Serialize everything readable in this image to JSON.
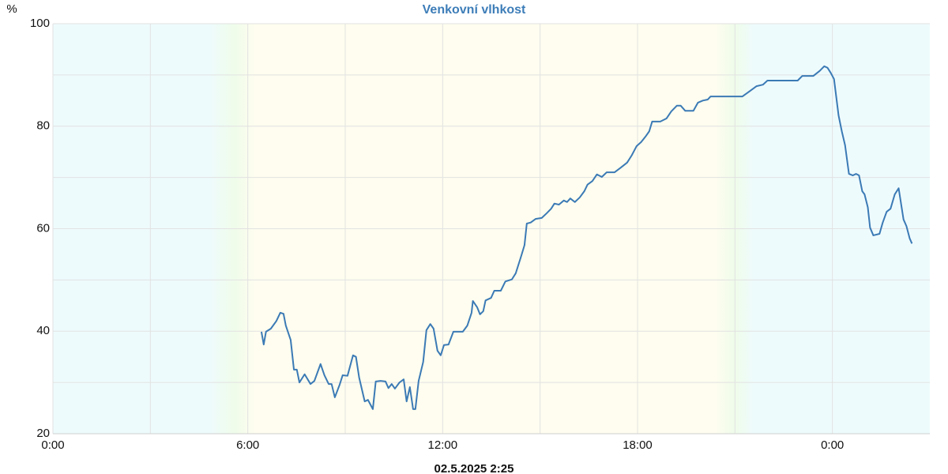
{
  "chart_data": {
    "type": "line",
    "title": "Venkovní vlhkost",
    "subtitle": "02.5.2025 2:25",
    "y_label": "%",
    "color": "#3b7ab5",
    "x": [
      6.42,
      6.49,
      6.56,
      6.71,
      6.88,
      7.0,
      7.1,
      7.17,
      7.32,
      7.42,
      7.51,
      7.59,
      7.75,
      7.93,
      8.05,
      8.24,
      8.36,
      8.49,
      8.58,
      8.68,
      8.83,
      8.92,
      9.07,
      9.24,
      9.33,
      9.43,
      9.6,
      9.7,
      9.85,
      9.94,
      10.09,
      10.24,
      10.33,
      10.43,
      10.53,
      10.67,
      10.8,
      10.89,
      10.99,
      11.09,
      11.16,
      11.26,
      11.4,
      11.5,
      11.62,
      11.72,
      11.84,
      11.94,
      12.04,
      12.18,
      12.33,
      12.47,
      12.62,
      12.76,
      12.89,
      12.93,
      13.06,
      13.15,
      13.25,
      13.32,
      13.49,
      13.59,
      13.79,
      13.93,
      14.13,
      14.25,
      14.42,
      14.52,
      14.59,
      14.71,
      14.86,
      15.05,
      15.2,
      15.34,
      15.44,
      15.58,
      15.73,
      15.83,
      15.93,
      16.07,
      16.22,
      16.36,
      16.46,
      16.61,
      16.75,
      16.9,
      17.05,
      17.29,
      17.48,
      17.68,
      17.82,
      17.97,
      18.11,
      18.26,
      18.36,
      18.45,
      18.7,
      18.89,
      19.04,
      19.21,
      19.33,
      19.47,
      19.72,
      19.86,
      20.01,
      20.16,
      20.25,
      21.23,
      21.47,
      21.66,
      21.86,
      22.0,
      22.93,
      23.07,
      23.41,
      23.61,
      23.75,
      23.85,
      23.95,
      24.05,
      24.19,
      24.29,
      24.39,
      24.51,
      24.63,
      24.73,
      24.82,
      24.92,
      24.99,
      25.09,
      25.16,
      25.26,
      25.45,
      25.55,
      25.67,
      25.79,
      25.92,
      26.04,
      26.19,
      26.28,
      26.38,
      26.45
    ],
    "values": [
      39.9,
      37.4,
      39.9,
      40.5,
      42,
      43.6,
      43.4,
      41.1,
      38.3,
      32.5,
      32.5,
      30,
      31.6,
      29.7,
      30.3,
      33.6,
      31.4,
      29.7,
      29.7,
      27.1,
      29.6,
      31.4,
      31.3,
      35.3,
      35,
      30.9,
      26.3,
      26.6,
      24.8,
      30.2,
      30.3,
      30.2,
      28.9,
      29.7,
      28.8,
      30,
      30.6,
      26.3,
      29.1,
      24.8,
      24.8,
      30.3,
      34,
      40.2,
      41.4,
      40.5,
      36.2,
      35.3,
      37.3,
      37.4,
      39.9,
      39.9,
      39.9,
      41.1,
      43.6,
      45.9,
      44.7,
      43.3,
      43.9,
      46,
      46.5,
      47.9,
      47.9,
      49.7,
      50.1,
      51.3,
      54.7,
      56.8,
      61,
      61.2,
      61.9,
      62.1,
      63,
      63.9,
      64.9,
      64.7,
      65.5,
      65.2,
      65.9,
      65.2,
      66.1,
      67.3,
      68.6,
      69.3,
      70.6,
      70.1,
      71,
      71,
      71.9,
      72.9,
      74.3,
      76.1,
      76.9,
      78.1,
      79,
      80.9,
      80.9,
      81.5,
      82.9,
      84,
      84,
      83,
      83,
      84.6,
      85,
      85.2,
      85.8,
      85.8,
      86.9,
      87.8,
      88.1,
      88.9,
      88.9,
      89.8,
      89.8,
      90.8,
      91.7,
      91.4,
      90.4,
      89.2,
      82.1,
      79,
      76.3,
      70.7,
      70.4,
      70.7,
      70.4,
      67.3,
      66.7,
      64.2,
      60.2,
      58.7,
      59,
      61.2,
      63.3,
      63.9,
      66.7,
      67.9,
      61.8,
      60.5,
      58.1,
      57.1
    ],
    "xlim": [
      0,
      27
    ],
    "xticks": [
      {
        "value": 0,
        "label": "0:00"
      },
      {
        "value": 6,
        "label": "6:00"
      },
      {
        "value": 12,
        "label": "12:00"
      },
      {
        "value": 18,
        "label": "18:00"
      },
      {
        "value": 24,
        "label": "0:00"
      }
    ],
    "xminor": [
      3,
      9,
      15,
      21
    ],
    "ylim": [
      20,
      100
    ],
    "yticks": [
      20,
      40,
      60,
      80,
      100
    ],
    "yminor": [
      30,
      50,
      70,
      90
    ],
    "grid": true,
    "background_stops": [
      [
        0,
        "#eefbfd"
      ],
      [
        4.8,
        "#eefbfd"
      ],
      [
        5.6,
        "#effcea"
      ],
      [
        6.2,
        "#fefdef"
      ],
      [
        20.4,
        "#fefdef"
      ],
      [
        21.0,
        "#effcea"
      ],
      [
        21.6,
        "#eefbfd"
      ],
      [
        27,
        "#eefbfd"
      ]
    ]
  }
}
